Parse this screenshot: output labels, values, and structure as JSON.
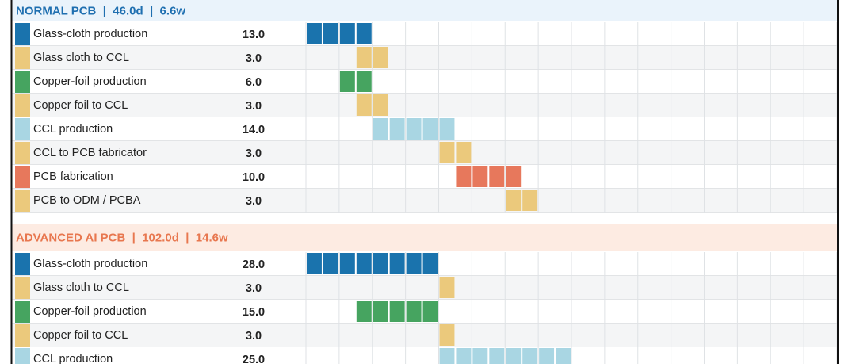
{
  "sections": [
    {
      "title": "NORMAL PCB  |  46.0d  |  6.6w",
      "title_color": "#1f6fb0",
      "background": "#eaf3fb",
      "rows": [
        {
          "label": "Glass-cloth production",
          "days": {
            "value": 13,
            "label": "13.0"
          },
          "start": 0,
          "color": "#1a73ad"
        },
        {
          "label": "Glass cloth to CCL",
          "days": {
            "value": 3,
            "label": "3.0"
          },
          "start": 13,
          "color": "#ebc97c"
        },
        {
          "label": "Copper-foil production",
          "days": {
            "value": 6,
            "label": "6.0"
          },
          "start": 7,
          "color": "#46a460"
        },
        {
          "label": "Copper foil to CCL",
          "days": {
            "value": 3,
            "label": "3.0"
          },
          "start": 13,
          "color": "#ebc97c"
        },
        {
          "label": "CCL production",
          "days": {
            "value": 14,
            "label": "14.0"
          },
          "start": 16,
          "color": "#a9d6e3"
        },
        {
          "label": "CCL to PCB fabricator",
          "days": {
            "value": 3,
            "label": "3.0"
          },
          "start": 30,
          "color": "#ebc97c"
        },
        {
          "label": "PCB fabrication",
          "days": {
            "value": 10,
            "label": "10.0"
          },
          "start": 33,
          "color": "#e7785c"
        },
        {
          "label": "PCB to ODM / PCBA",
          "days": {
            "value": 3,
            "label": "3.0"
          },
          "start": 43,
          "color": "#ebc97c"
        }
      ]
    },
    {
      "title": "ADVANCED AI PCB  |  102.0d  |  14.6w",
      "title_color": "#e8774f",
      "background": "#fdebe2",
      "rows": [
        {
          "label": "Glass-cloth production",
          "days": {
            "value": 28,
            "label": "28.0"
          },
          "start": 0,
          "color": "#1a73ad"
        },
        {
          "label": "Glass cloth to CCL",
          "days": {
            "value": 3,
            "label": "3.0"
          },
          "start": 28,
          "color": "#ebc97c"
        },
        {
          "label": "Copper-foil production",
          "days": {
            "value": 15,
            "label": "15.0"
          },
          "start": 13,
          "color": "#46a460"
        },
        {
          "label": "Copper foil to CCL",
          "days": {
            "value": 3,
            "label": "3.0"
          },
          "start": 28,
          "color": "#ebc97c"
        },
        {
          "label": "CCL production",
          "days": {
            "value": 25,
            "label": "25.0"
          },
          "start": 31,
          "color": "#a9d6e3"
        }
      ]
    }
  ]
}
